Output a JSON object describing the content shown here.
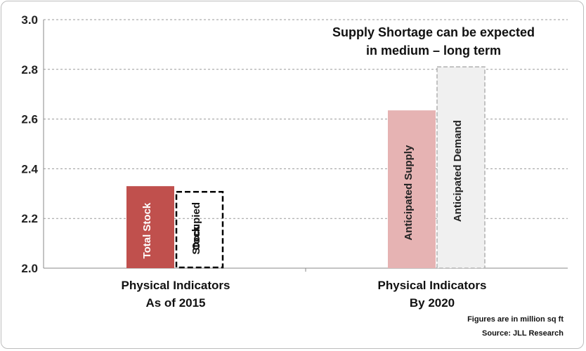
{
  "chart_data": {
    "type": "bar",
    "title": "",
    "xlabel": "",
    "ylabel": "",
    "ylim": [
      2.0,
      3.0
    ],
    "yticks": [
      "2.0",
      "2.2",
      "2.4",
      "2.6",
      "2.8",
      "3.0"
    ],
    "grid": true,
    "categories": [
      {
        "lines": [
          "Physical Indicators",
          "As of 2015"
        ]
      },
      {
        "lines": [
          "Physical Indicators",
          "By 2020"
        ]
      }
    ],
    "bars": [
      {
        "category": 0,
        "label_lines": [
          "Total Stock"
        ],
        "value": 2.33,
        "style": "solid",
        "color": "#c0504d",
        "text_color": "#ffffff"
      },
      {
        "category": 0,
        "label_lines": [
          "Occupied",
          "Stock"
        ],
        "value": 2.31,
        "style": "dashed",
        "color": "#000000",
        "text_color": "#111111"
      },
      {
        "category": 1,
        "label_lines": [
          "Anticipated Supply"
        ],
        "value": 2.635,
        "style": "solid",
        "color": "#e6b3b3",
        "text_color": "#222222"
      },
      {
        "category": 1,
        "label_lines": [
          "Anticipated Demand"
        ],
        "value": 2.81,
        "style": "dashed",
        "color": "#f0f0f0",
        "text_color": "#222222"
      }
    ],
    "annotation_lines": [
      "Supply Shortage can be expected",
      "in medium – long term"
    ],
    "notes": [
      "Figures are in million sq ft",
      "Source: JLL Research"
    ]
  }
}
